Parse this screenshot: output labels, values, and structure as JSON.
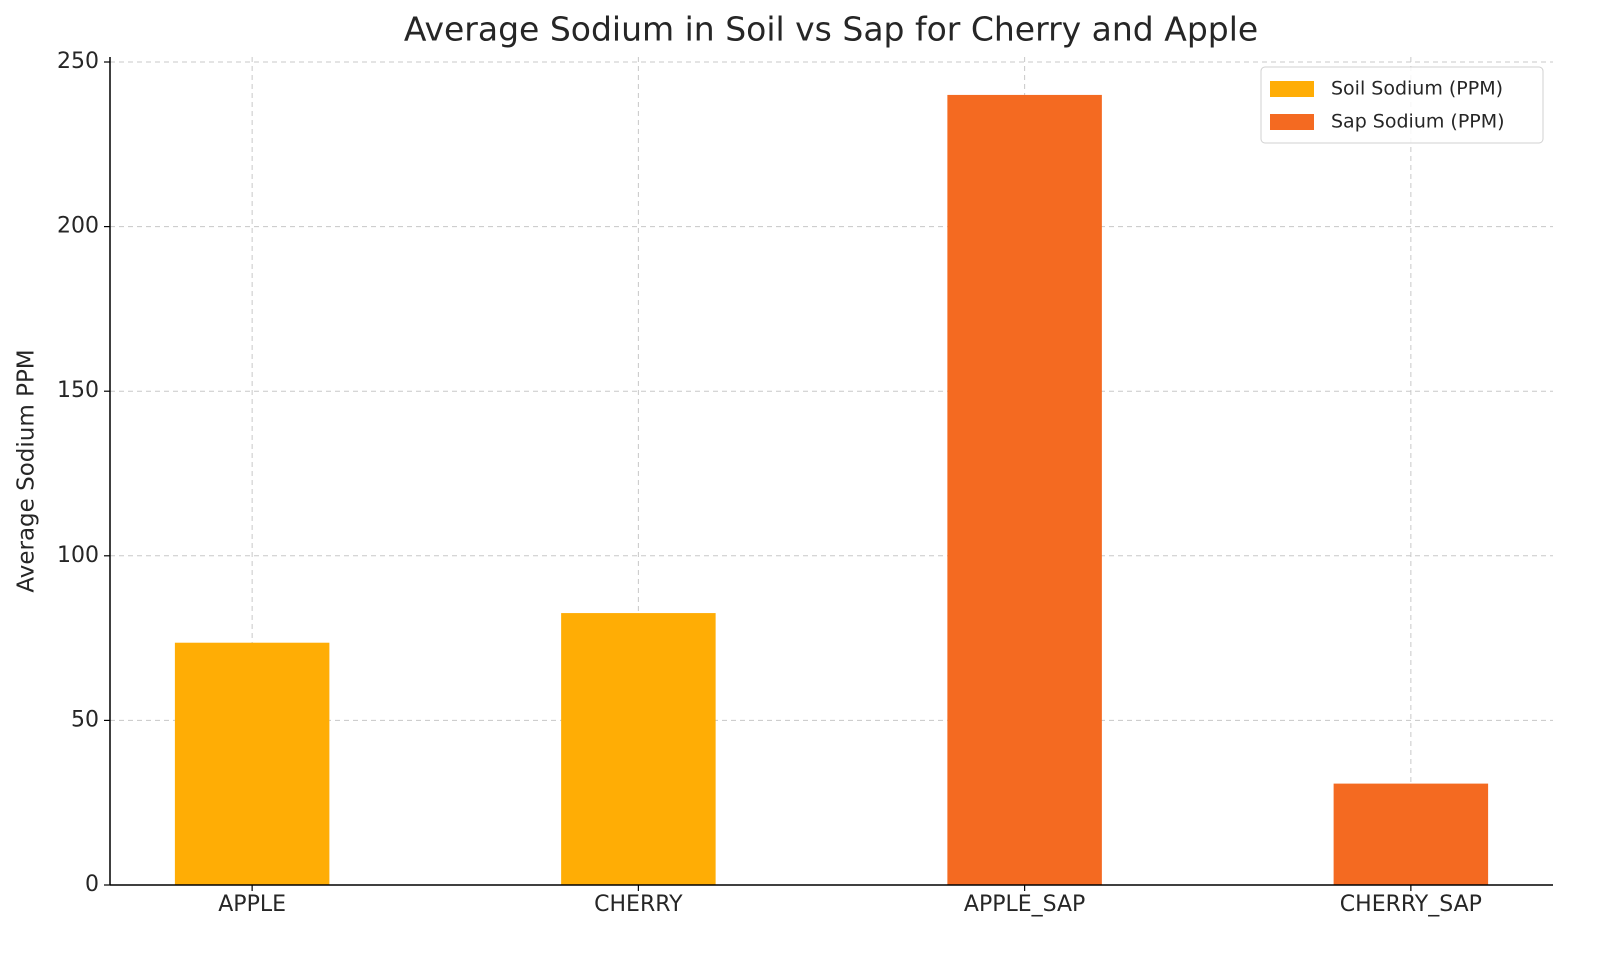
{
  "chart_data": {
    "type": "bar",
    "title": "Average Sodium in Soil vs Sap for Cherry and Apple",
    "y_label": "Average Sodium PPM",
    "categories": [
      "APPLE",
      "CHERRY",
      "APPLE_SAP",
      "CHERRY_SAP"
    ],
    "series": [
      {
        "name": "Soil Sodium (PPM)",
        "color": "#ffad05",
        "values": [
          73.6,
          82.6,
          null,
          null
        ]
      },
      {
        "name": "Sap Sodium (PPM)",
        "color": "#f46a21",
        "values": [
          null,
          null,
          240,
          30.8
        ]
      }
    ],
    "ylim": [
      0,
      250
    ],
    "yticks": [
      0,
      50,
      100,
      150,
      200,
      250
    ],
    "grid": true,
    "legend": "upper right"
  }
}
